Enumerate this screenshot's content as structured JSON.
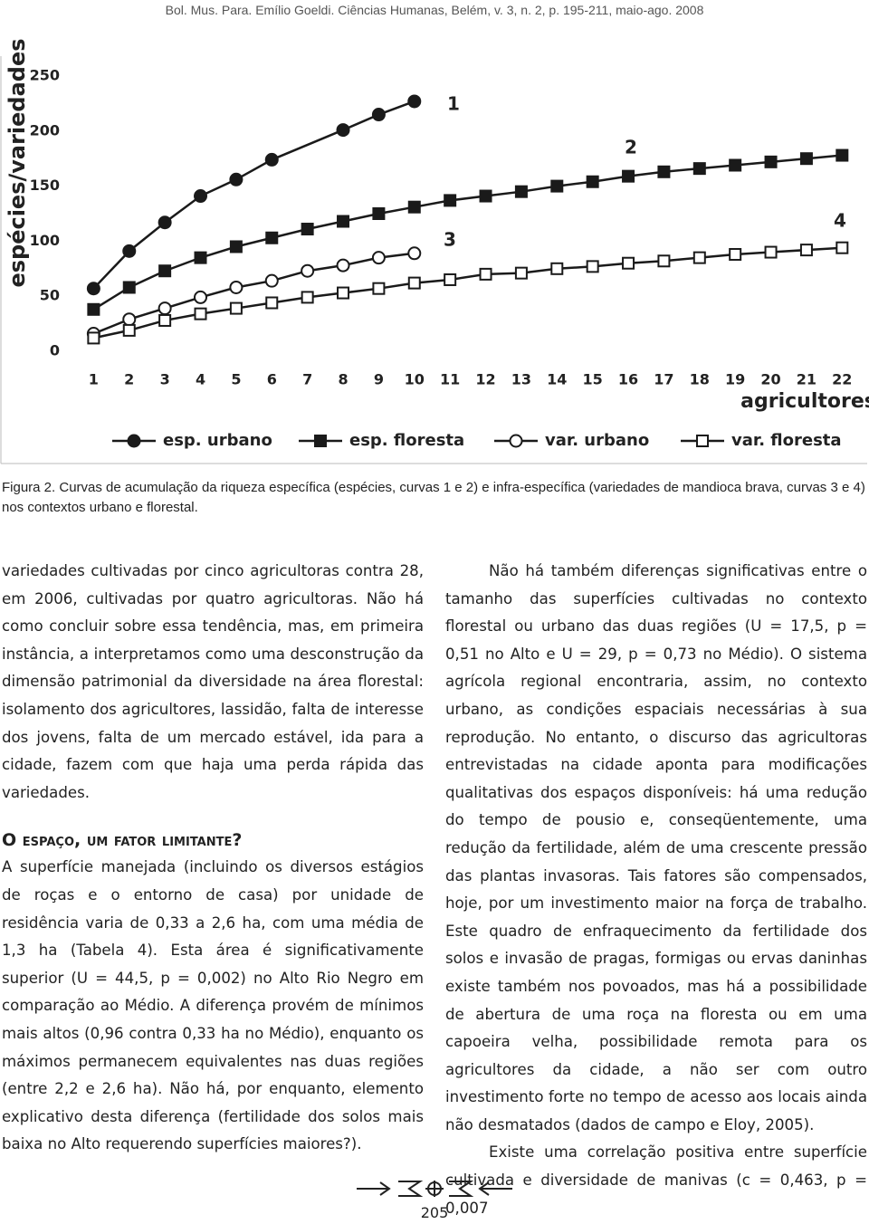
{
  "header": "Bol. Mus. Para. Emílio Goeldi. Ciências Humanas, Belém, v. 3, n. 2, p. 195-211, maio-ago. 2008",
  "chart_data": {
    "type": "line",
    "ylabel": "espécies/variedades",
    "xlabel": "agricultores",
    "ylim": [
      0,
      250
    ],
    "yticks": [
      0,
      50,
      100,
      150,
      200,
      250
    ],
    "xlim": [
      0,
      22.5
    ],
    "xticks": [
      1,
      2,
      3,
      4,
      5,
      6,
      7,
      8,
      9,
      10,
      11,
      12,
      13,
      14,
      15,
      16,
      17,
      18,
      19,
      20,
      21,
      22
    ],
    "grid": false,
    "series": [
      {
        "name": "esp. urbano",
        "color": "#1a1a1a",
        "marker": "circle",
        "filled": true,
        "x": [
          1,
          2,
          3,
          4,
          5,
          6,
          8,
          9,
          10
        ],
        "values": [
          57,
          91,
          117,
          141,
          156,
          174,
          201,
          215,
          227
        ]
      },
      {
        "name": "esp. floresta",
        "color": "#1a1a1a",
        "marker": "square",
        "filled": true,
        "x": [
          1,
          2,
          3,
          4,
          5,
          6,
          7,
          8,
          9,
          10,
          11,
          12,
          13,
          14,
          15,
          16,
          17,
          18,
          19,
          20,
          21,
          22
        ],
        "values": [
          38,
          58,
          73,
          85,
          95,
          103,
          111,
          118,
          125,
          131,
          137,
          141,
          145,
          150,
          154,
          159,
          163,
          166,
          169,
          172,
          175,
          178
        ]
      },
      {
        "name": "var. urbano",
        "color": "#1a1a1a",
        "marker": "circle",
        "filled": false,
        "x": [
          1,
          2,
          3,
          4,
          5,
          6,
          7,
          8,
          9,
          10
        ],
        "values": [
          16,
          29,
          39,
          49,
          58,
          64,
          73,
          78,
          85,
          89
        ]
      },
      {
        "name": "var. floresta",
        "color": "#1a1a1a",
        "marker": "square",
        "filled": false,
        "x": [
          1,
          2,
          3,
          4,
          5,
          6,
          7,
          8,
          9,
          10,
          11,
          12,
          13,
          14,
          15,
          16,
          17,
          18,
          19,
          20,
          21,
          22
        ],
        "values": [
          12,
          19,
          28,
          34,
          39,
          44,
          49,
          53,
          57,
          62,
          65,
          70,
          71,
          75,
          77,
          80,
          82,
          85,
          88,
          90,
          92,
          94
        ]
      }
    ],
    "annotations": [
      "1",
      "2",
      "3",
      "4"
    ]
  },
  "caption": "Figura 2. Curvas de acumulação da riqueza específica (espécies, curvas 1 e 2) e infra-específica (variedades de mandioca brava, curvas 3 e 4) nos contextos urbano e florestal.",
  "left_column": {
    "paragraphs": [
      "variedades cultivadas por cinco agricultoras contra 28, em 2006, cultivadas por quatro agricultoras. Não há como concluir sobre essa tendência, mas, em primeira instância, a interpretamos como uma desconstrução da dimensão patrimonial da diversidade na área florestal: isolamento dos agricultores, lassidão, falta de interesse dos jovens, falta de um mercado estável, ida para a cidade, fazem com que haja uma perda rápida das variedades."
    ],
    "heading": "O espaço, um fator limitante?",
    "paragraphs_after": [
      "A superfície manejada (incluindo os diversos estágios de roças e o entorno de casa) por unidade de residência varia de 0,33 a 2,6 ha, com uma média de 1,3 ha (Tabela 4). Esta área é significativamente superior (U = 44,5, p = 0,002) no Alto Rio Negro em comparação ao Médio. A diferença provém de mínimos mais altos (0,96 contra 0,33 ha no Médio), enquanto os máximos permanecem equivalentes nas duas regiões (entre 2,2 e 2,6 ha). Não há, por enquanto, elemento explicativo desta diferença (fertilidade dos solos mais baixa no Alto requerendo superfícies maiores?)."
    ]
  },
  "right_column": {
    "paragraphs": [
      "Não há também diferenças significativas entre o tamanho das superfícies cultivadas no contexto florestal ou urbano das duas regiões (U = 17,5, p = 0,51 no Alto e U = 29, p = 0,73 no Médio). O sistema agrícola regional encontraria, assim, no contexto urbano, as condições espaciais necessárias à sua reprodução. No entanto, o discurso das agricultoras entrevistadas na cidade aponta para modificações qualitativas dos espaços disponíveis: há uma redução do tempo de pousio e, conseqüentemente, uma redução da fertilidade, além de uma crescente pressão das plantas invasoras. Tais fatores são compensados, hoje, por um investimento maior na força de trabalho. Este quadro de enfraquecimento da fertilidade dos solos e invasão de pragas, formigas ou ervas daninhas existe também nos povoados, mas há a possibilidade de abertura de uma roça na floresta ou em uma capoeira velha, possibilidade remota para os agricultores da cidade, a não ser com outro investimento forte no tempo de acesso aos locais ainda não desmatados (dados de campo e Eloy, 2005).",
      "Existe uma correlação positiva entre superfície cultivada e diversidade de manivas (c = 0,463, p = 0,007"
    ]
  },
  "page_number": "205"
}
